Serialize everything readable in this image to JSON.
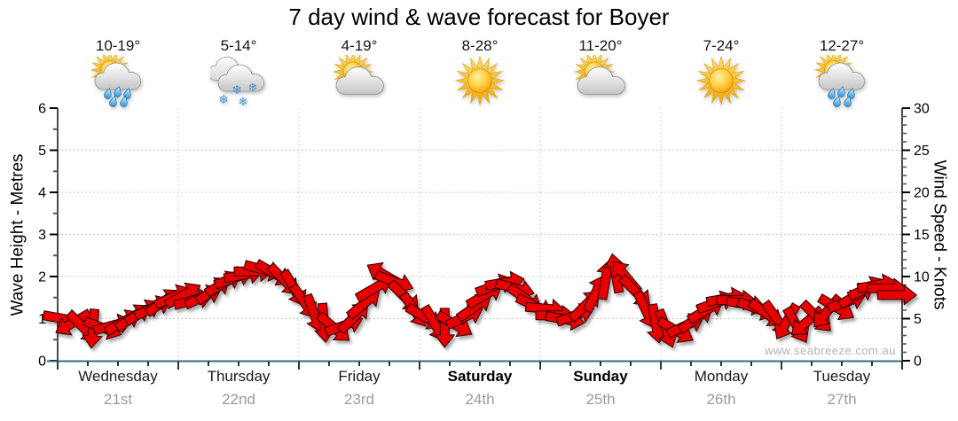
{
  "title": "7 day wind & wave forecast for Boyer",
  "watermark": "www.seabreeze.com.au",
  "colors": {
    "arrow_red": "#e60000",
    "arrow_outline": "#2a0000",
    "baseline_blue": "#33688f",
    "grid_gray": "#b5b5b5",
    "date_gray": "#9b9b9b",
    "watermark_gray": "#b4b4b4",
    "tick_black": "#000000",
    "minor_tick_gray": "#555555"
  },
  "chart_data": {
    "type": "wind-arrows",
    "title": "7 day wind & wave forecast for Boyer",
    "y_left": {
      "label": "Wave Height - Metres",
      "min": 0,
      "max": 6,
      "major_step": 1,
      "minor_step": 0.5,
      "tick_labels": [
        "0",
        "1",
        "2",
        "3",
        "4",
        "5",
        "6"
      ],
      "grid": "dotted horizontal at 1..5"
    },
    "y_right": {
      "label": "Wind Speed - Knots",
      "min": 0,
      "max": 30,
      "major_step": 5,
      "minor_step": 1,
      "tick_labels": [
        "0",
        "5",
        "10",
        "15",
        "20",
        "25",
        "30"
      ],
      "grid": "dotted vertical at day boundaries"
    },
    "days": [
      {
        "name": "Wednesday",
        "date": "21st",
        "temp_range": "10-19°",
        "icon": "sun-cloud-rain-icon",
        "bold": false
      },
      {
        "name": "Thursday",
        "date": "22nd",
        "temp_range": "5-14°",
        "icon": "clouds-snow-icon",
        "bold": false
      },
      {
        "name": "Friday",
        "date": "23rd",
        "temp_range": "4-19°",
        "icon": "sun-cloud-icon",
        "bold": false
      },
      {
        "name": "Saturday",
        "date": "24th",
        "temp_range": "8-28°",
        "icon": "sun-icon",
        "bold": true
      },
      {
        "name": "Sunday",
        "date": "25th",
        "temp_range": "11-20°",
        "icon": "sun-cloud-icon",
        "bold": true
      },
      {
        "name": "Monday",
        "date": "26th",
        "temp_range": "7-24°",
        "icon": "sun-icon",
        "bold": false
      },
      {
        "name": "Tuesday",
        "date": "27th",
        "temp_range": "12-27°",
        "icon": "sun-cloud-rain-icon",
        "bold": false
      }
    ],
    "wind_series": {
      "name": "Wind Speed",
      "units": "knots",
      "sample_interval_hours": 2,
      "speeds_knots": [
        5.0,
        4.5,
        4.0,
        3.8,
        3.9,
        4.2,
        4.6,
        5.2,
        5.8,
        6.3,
        7.0,
        7.6,
        7.8,
        7.2,
        7.6,
        8.4,
        9.2,
        9.8,
        10.2,
        10.6,
        10.8,
        10.4,
        9.6,
        8.6,
        7.0,
        5.6,
        4.5,
        3.9,
        4.2,
        5.2,
        6.8,
        8.6,
        10.2,
        9.4,
        7.6,
        6.0,
        5.2,
        4.4,
        3.9,
        4.3,
        5.2,
        6.4,
        7.8,
        8.9,
        9.3,
        8.6,
        7.4,
        6.5,
        6.2,
        5.4,
        4.9,
        5.4,
        6.6,
        8.0,
        9.6,
        10.4,
        10.0,
        8.2,
        6.0,
        4.4,
        3.8,
        3.6,
        4.2,
        5.0,
        6.0,
        6.9,
        7.4,
        7.2,
        6.7,
        6.2,
        5.6,
        5.0,
        4.6,
        4.2,
        4.6,
        5.2,
        5.8,
        6.3,
        7.0,
        7.8,
        8.6,
        9.0,
        8.6,
        7.8
      ],
      "directions_deg": [
        10,
        150,
        45,
        95,
        20,
        -15,
        -30,
        -35,
        -30,
        -25,
        -35,
        -25,
        -30,
        -15,
        -25,
        -35,
        -30,
        -20,
        -10,
        0,
        15,
        30,
        45,
        60,
        55,
        70,
        85,
        40,
        -20,
        -45,
        -40,
        -30,
        -150,
        20,
        45,
        55,
        30,
        60,
        90,
        30,
        -25,
        -35,
        -30,
        -20,
        -10,
        15,
        35,
        25,
        5,
        0,
        10,
        -20,
        -45,
        -65,
        -80,
        -100,
        -130,
        45,
        65,
        80,
        70,
        30,
        -25,
        -35,
        -30,
        -20,
        -10,
        0,
        10,
        20,
        35,
        55,
        120,
        60,
        140,
        45,
        130,
        30,
        -20,
        -30,
        -25,
        -10,
        0,
        0
      ]
    }
  }
}
